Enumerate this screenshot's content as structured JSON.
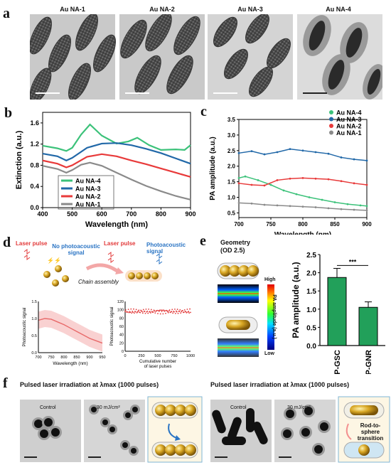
{
  "panel_labels": {
    "a": "a",
    "b": "b",
    "c": "c",
    "d": "d",
    "e": "e",
    "f": "f"
  },
  "panel_a": {
    "titles": [
      "Au NA-1",
      "Au NA-2",
      "Au NA-3",
      "Au NA-4"
    ]
  },
  "panel_d": {
    "laser_left": "Laser pulse",
    "no_signal": "No photoacoustic signal",
    "chain_assembly": "Chain assembly",
    "laser_right": "Laser pulse",
    "pa_signal": "Photoacoustic signal"
  },
  "panel_e": {
    "geometry": "Geometry",
    "od": "(OD 2.5)",
    "high": "High",
    "low": "Low",
    "colorbar_label": "PA amplitude (a.u.)"
  },
  "panel_f": {
    "left_title": "Pulsed laser irradiation at λmax (1000 pulses)",
    "right_title": "Pulsed laser irradiation at λmax (1000 pulses)",
    "control": "Control",
    "fluence": "30 mJ/cm²",
    "transition": "Rod-to-sphere transition"
  },
  "chart_data": [
    {
      "id": "b",
      "type": "line",
      "xlabel": "Wavelength (nm)",
      "ylabel": "Extinction (a.u.)",
      "xlim": [
        400,
        900
      ],
      "ylim": [
        0,
        1.8
      ],
      "xticks": [
        400,
        500,
        600,
        700,
        800,
        900
      ],
      "yticks": [
        0,
        0.4,
        0.8,
        1.2,
        1.6
      ],
      "legend_position": "bottom-left",
      "series": [
        {
          "name": "Au NA-4",
          "color": "#3cc27a",
          "x": [
            400,
            450,
            480,
            500,
            530,
            560,
            600,
            650,
            690,
            720,
            760,
            800,
            850,
            880,
            900
          ],
          "y": [
            1.17,
            1.12,
            1.07,
            1.13,
            1.38,
            1.57,
            1.36,
            1.21,
            1.25,
            1.32,
            1.18,
            1.09,
            1.1,
            1.09,
            1.18
          ]
        },
        {
          "name": "Au NA-3",
          "color": "#2168a8",
          "x": [
            400,
            450,
            480,
            500,
            550,
            600,
            650,
            700,
            750,
            800,
            850,
            900
          ],
          "y": [
            1.02,
            0.97,
            0.89,
            0.94,
            1.13,
            1.21,
            1.22,
            1.18,
            1.11,
            1.03,
            0.93,
            0.83
          ]
        },
        {
          "name": "Au NA-2",
          "color": "#e83a3a",
          "x": [
            400,
            450,
            480,
            500,
            550,
            600,
            650,
            700,
            750,
            800,
            850,
            900
          ],
          "y": [
            0.89,
            0.83,
            0.76,
            0.8,
            0.96,
            1.01,
            0.97,
            0.89,
            0.82,
            0.74,
            0.66,
            0.58
          ]
        },
        {
          "name": "Au NA-1",
          "color": "#8a8a8a",
          "x": [
            400,
            450,
            480,
            500,
            530,
            560,
            600,
            650,
            700,
            750,
            800,
            850,
            900
          ],
          "y": [
            0.79,
            0.73,
            0.66,
            0.71,
            0.81,
            0.85,
            0.79,
            0.66,
            0.53,
            0.41,
            0.31,
            0.22,
            0.15
          ]
        }
      ]
    },
    {
      "id": "c",
      "type": "line",
      "xlabel": "Wavelength (nm)",
      "ylabel": "PA amplitude (a.u.)",
      "xlim": [
        700,
        900
      ],
      "ylim": [
        0.35,
        3.5
      ],
      "xticks": [
        700,
        750,
        800,
        850,
        900
      ],
      "yticks": [
        0.5,
        1.0,
        1.5,
        2.0,
        2.5,
        3.0,
        3.5
      ],
      "legend_position": "top-right",
      "series": [
        {
          "name": "Au NA-4",
          "color": "#3cc27a",
          "x": [
            700,
            710,
            730,
            750,
            770,
            790,
            810,
            830,
            850,
            870,
            890,
            900
          ],
          "y": [
            1.62,
            1.67,
            1.55,
            1.4,
            1.22,
            1.1,
            1.0,
            0.92,
            0.84,
            0.78,
            0.74,
            0.72
          ]
        },
        {
          "name": "Au NA-3",
          "color": "#2168a8",
          "x": [
            700,
            720,
            740,
            760,
            780,
            800,
            820,
            840,
            860,
            880,
            900
          ],
          "y": [
            2.42,
            2.48,
            2.38,
            2.45,
            2.55,
            2.5,
            2.45,
            2.4,
            2.28,
            2.22,
            2.18
          ]
        },
        {
          "name": "Au NA-2",
          "color": "#e83a3a",
          "x": [
            700,
            720,
            740,
            760,
            780,
            800,
            820,
            840,
            860,
            880,
            900
          ],
          "y": [
            1.45,
            1.4,
            1.38,
            1.55,
            1.6,
            1.62,
            1.6,
            1.58,
            1.52,
            1.45,
            1.4
          ]
        },
        {
          "name": "Au NA-1",
          "color": "#8a8a8a",
          "x": [
            700,
            720,
            740,
            760,
            780,
            800,
            820,
            840,
            860,
            880,
            900
          ],
          "y": [
            0.82,
            0.8,
            0.76,
            0.74,
            0.72,
            0.7,
            0.68,
            0.65,
            0.62,
            0.6,
            0.58
          ]
        }
      ]
    },
    {
      "id": "d1",
      "type": "line",
      "xlabel": "Wavelength (nm)",
      "ylabel": "Photoacoustic signal",
      "xlim": [
        700,
        950
      ],
      "ylim": [
        0,
        1.5
      ],
      "xticks": [
        700,
        750,
        800,
        850,
        900,
        950
      ],
      "yticks": [
        0,
        0.5,
        1.0,
        1.5
      ],
      "series": [
        {
          "x": [
            700,
            725,
            750,
            775,
            800,
            825,
            850,
            875,
            900,
            925,
            950
          ],
          "y": [
            0.95,
            1.0,
            0.98,
            0.9,
            0.82,
            0.72,
            0.62,
            0.52,
            0.42,
            0.35,
            0.28
          ]
        }
      ]
    },
    {
      "id": "d2",
      "type": "scatter",
      "xlabel": "Cumulative number of laser pulses",
      "ylabel": "Photoacoustic signal",
      "xlim": [
        0,
        1000
      ],
      "ylim": [
        0,
        120
      ],
      "xticks": [
        0,
        250,
        500,
        750,
        1000
      ],
      "yticks": [
        0,
        20,
        40,
        60,
        80,
        100,
        120
      ],
      "series": [
        {
          "mean": 96,
          "spread": 6
        }
      ]
    },
    {
      "id": "e",
      "type": "bar",
      "ylabel": "PA amplitude (a.u.)",
      "categories": [
        "P-GSC",
        "P-GNR"
      ],
      "values": [
        1.87,
        1.05
      ],
      "errors": [
        0.25,
        0.15
      ],
      "ylim": [
        0,
        2.5
      ],
      "yticks": [
        0,
        0.5,
        1.0,
        1.5,
        2.0,
        2.5
      ],
      "significance": "***",
      "color": "#22a05a"
    }
  ]
}
